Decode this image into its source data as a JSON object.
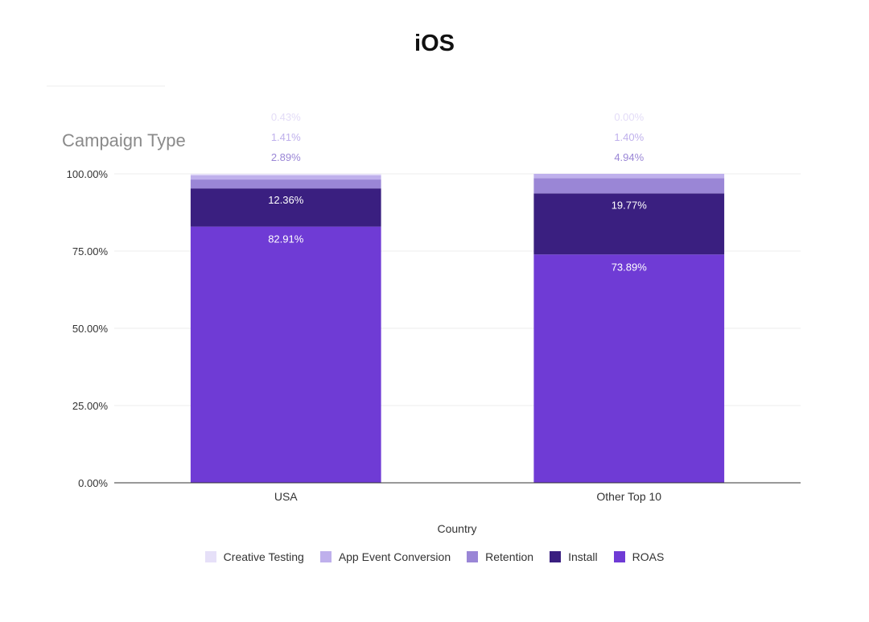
{
  "title": "iOS",
  "chart_data": {
    "type": "bar",
    "stacked": true,
    "subtitle": "Campaign Type",
    "xlabel": "Country",
    "ylabel": "",
    "categories": [
      "USA",
      "Other Top 10"
    ],
    "ylim": [
      0,
      100
    ],
    "yticks": [
      "0.00%",
      "25.00%",
      "50.00%",
      "75.00%",
      "100.00%"
    ],
    "ytick_values": [
      0,
      25,
      50,
      75,
      100
    ],
    "grid": true,
    "legend_position": "bottom",
    "series": [
      {
        "name": "ROAS",
        "color": "#6f3bd5",
        "values": [
          82.91,
          73.89
        ],
        "labels": [
          "82.91%",
          "73.89%"
        ]
      },
      {
        "name": "Install",
        "color": "#3a1f80",
        "values": [
          12.36,
          19.77
        ],
        "labels": [
          "12.36%",
          "19.77%"
        ]
      },
      {
        "name": "Retention",
        "color": "#9a86d6",
        "values": [
          2.89,
          4.94
        ],
        "labels": [
          "2.89%",
          "4.94%"
        ]
      },
      {
        "name": "App Event Conversion",
        "color": "#bfb0ec",
        "values": [
          1.41,
          1.4
        ],
        "labels": [
          "1.41%",
          "1.40%"
        ]
      },
      {
        "name": "Creative Testing",
        "color": "#e6e0f8",
        "values": [
          0.43,
          0.0
        ],
        "labels": [
          "0.43%",
          "0.00%"
        ]
      }
    ],
    "legend_order": [
      "Creative Testing",
      "App Event Conversion",
      "Retention",
      "Install",
      "ROAS"
    ]
  }
}
